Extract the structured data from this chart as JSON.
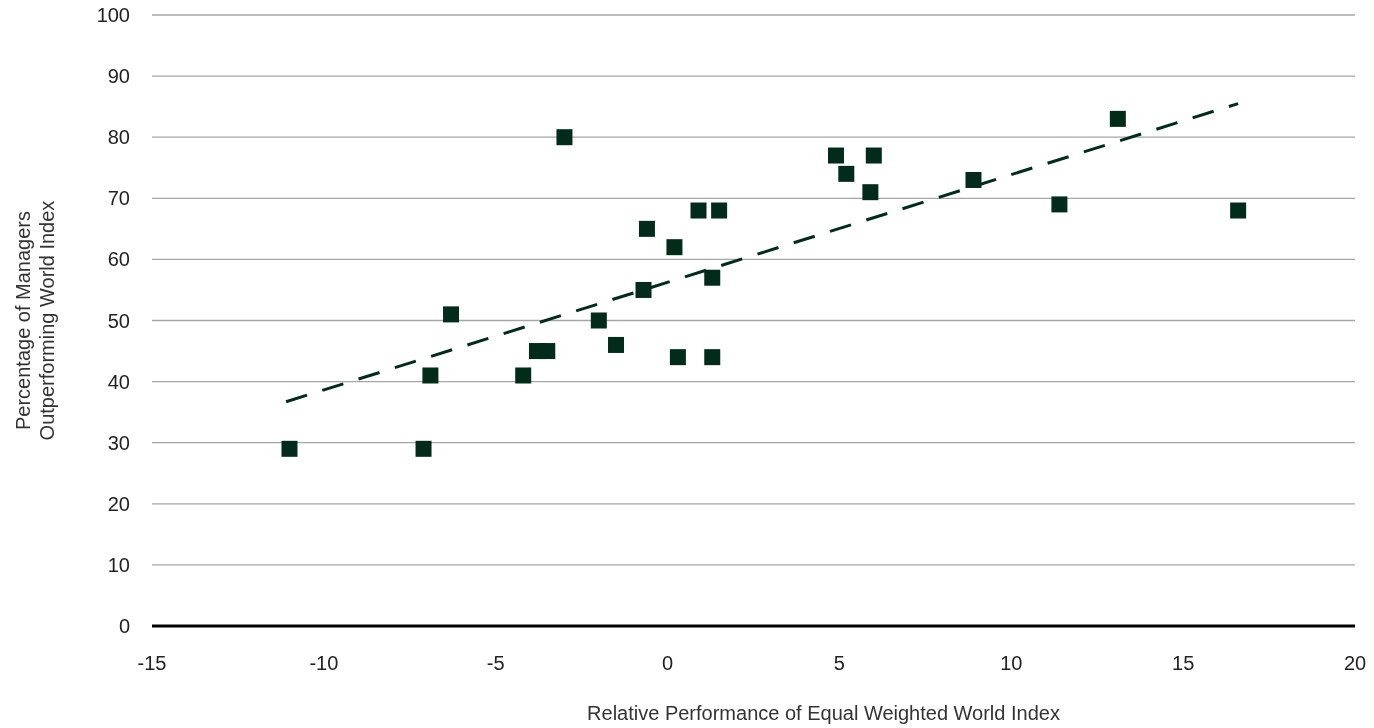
{
  "chart_data": {
    "type": "scatter",
    "xlabel": "Relative Performance of Equal Weighted World Index",
    "ylabel": "Percentage of Managers\nOutperforming World Index",
    "xlim": [
      -15,
      20
    ],
    "xticks": [
      -15,
      -10,
      -5,
      0,
      5,
      10,
      15,
      20
    ],
    "ylim": [
      0,
      100
    ],
    "yticks": [
      0,
      10,
      20,
      30,
      40,
      50,
      60,
      70,
      80,
      90,
      100
    ],
    "grid": "y",
    "marker": "square",
    "series": [
      {
        "color": "#022b1c",
        "x": [
          -11.0,
          -7.1,
          -6.9,
          -6.3,
          -4.2,
          -3.8,
          -3.5,
          -3.0,
          -2.0,
          -1.5,
          -0.6,
          -0.7,
          0.2,
          0.3,
          0.9,
          1.5,
          1.3,
          1.3,
          4.9,
          5.2,
          6.0,
          5.9,
          8.9,
          11.4,
          13.1,
          16.6
        ],
        "values": [
          29,
          29,
          41,
          51,
          41,
          45,
          45,
          80,
          50,
          46,
          65,
          55,
          62,
          44,
          68,
          68,
          57,
          44,
          77,
          74,
          77,
          71,
          73,
          69,
          83,
          68
        ]
      },
      {
        "type": "line",
        "color": "#022b1c",
        "line_style": "dashed",
        "marker": "none",
        "x": [
          -11.1,
          16.6
        ],
        "values": [
          36.7,
          85.5
        ]
      }
    ]
  }
}
